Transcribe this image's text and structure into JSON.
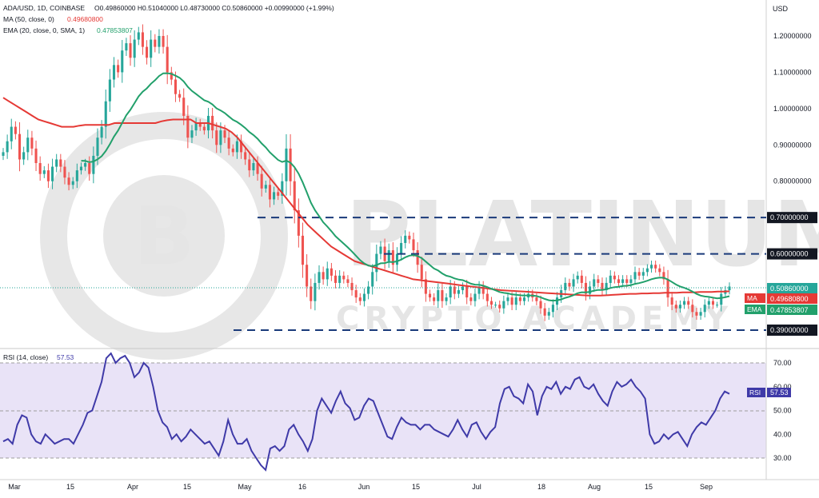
{
  "colors": {
    "up": "#26a69a",
    "down": "#ef5350",
    "ma": "#e53935",
    "ema": "#22a06b",
    "rsi": "#3f3aa8",
    "level": "#1a3a7a",
    "label_bg": "#131722",
    "rsi_band": "#e9e3f7"
  },
  "legend": {
    "symbol": "ADA/USD, 1D, COINBASE",
    "ohlc": "O0.49860000 H0.51040000 L0.48730000 C0.50860000 +0.00990000 (+1.99%)",
    "ma": "MA (50, close, 0)",
    "ma_value": "0.49680800",
    "ema": "EMA (20, close, 0, SMA, 1)",
    "ema_value": "0.47853807",
    "rsi": "RSI (14, close)",
    "rsi_value": "57.53"
  },
  "watermark": {
    "line1": "PLATINUM",
    "line2": "CRYPTO ACADEMY",
    "logo_letter": "B"
  },
  "chart_data": [
    {
      "type": "candlestick",
      "title": "ADA/USD, 1D, COINBASE",
      "ylabel": "USD",
      "ylim": [
        0.35,
        1.27
      ],
      "x_ticks": [
        "Mar",
        "15",
        "Apr",
        "15",
        "May",
        "16",
        "Jun",
        "15",
        "Jul",
        "18",
        "Aug",
        "15",
        "Sep"
      ],
      "y_ticks": [
        "1.20000000",
        "1.10000000",
        "1.00000000",
        "0.90000000",
        "0.80000000"
      ],
      "levels": [
        {
          "label": "0.70000000",
          "value": 0.7
        },
        {
          "label": "0.60000000",
          "value": 0.6
        },
        {
          "label": "0.39000000",
          "value": 0.39
        }
      ],
      "price_labels": [
        {
          "label": "0.50860000",
          "tag": "",
          "value": 0.5086
        },
        {
          "label": "0.49680800",
          "tag": "MA",
          "value": 0.4968
        },
        {
          "label": "0.47853807",
          "tag": "EMA",
          "value": 0.4785
        }
      ],
      "close": [
        0.88,
        0.91,
        0.95,
        0.93,
        0.86,
        0.88,
        0.92,
        0.89,
        0.85,
        0.82,
        0.83,
        0.8,
        0.84,
        0.86,
        0.84,
        0.81,
        0.79,
        0.8,
        0.83,
        0.84,
        0.85,
        0.82,
        0.87,
        0.92,
        0.95,
        1.02,
        1.08,
        1.12,
        1.1,
        1.16,
        1.18,
        1.14,
        1.19,
        1.21,
        1.17,
        1.14,
        1.19,
        1.17,
        1.2,
        1.17,
        1.1,
        1.08,
        1.04,
        1.03,
        0.98,
        0.92,
        0.94,
        0.96,
        0.95,
        0.94,
        0.98,
        0.94,
        0.9,
        0.94,
        0.92,
        0.89,
        0.88,
        0.91,
        0.88,
        0.86,
        0.83,
        0.85,
        0.82,
        0.78,
        0.79,
        0.75,
        0.77,
        0.76,
        0.8,
        0.89,
        0.8,
        0.72,
        0.65,
        0.57,
        0.51,
        0.47,
        0.52,
        0.55,
        0.53,
        0.56,
        0.54,
        0.52,
        0.54,
        0.53,
        0.52,
        0.5,
        0.48,
        0.47,
        0.49,
        0.51,
        0.55,
        0.6,
        0.62,
        0.58,
        0.61,
        0.57,
        0.6,
        0.63,
        0.65,
        0.64,
        0.61,
        0.57,
        0.53,
        0.49,
        0.48,
        0.47,
        0.5,
        0.47,
        0.48,
        0.51,
        0.49,
        0.5,
        0.51,
        0.48,
        0.47,
        0.49,
        0.51,
        0.49,
        0.47,
        0.46,
        0.46,
        0.45,
        0.47,
        0.48,
        0.46,
        0.48,
        0.47,
        0.48,
        0.49,
        0.48,
        0.47,
        0.45,
        0.43,
        0.44,
        0.46,
        0.48,
        0.5,
        0.52,
        0.51,
        0.53,
        0.54,
        0.52,
        0.49,
        0.51,
        0.53,
        0.52,
        0.5,
        0.52,
        0.54,
        0.53,
        0.52,
        0.53,
        0.52,
        0.53,
        0.55,
        0.54,
        0.55,
        0.56,
        0.57,
        0.56,
        0.55,
        0.53,
        0.48,
        0.46,
        0.45,
        0.46,
        0.47,
        0.46,
        0.44,
        0.43,
        0.44,
        0.46,
        0.47,
        0.46,
        0.46,
        0.49,
        0.5,
        0.51
      ],
      "ma_50": [
        1.03,
        1.02,
        1.01,
        1.0,
        0.99,
        0.98,
        0.97,
        0.965,
        0.96,
        0.955,
        0.95,
        0.95,
        0.95,
        0.953,
        0.955,
        0.955,
        0.955,
        0.955,
        0.955,
        0.96,
        0.96,
        0.96,
        0.96,
        0.96,
        0.96,
        0.96,
        0.96,
        0.965,
        0.968,
        0.97,
        0.97,
        0.97,
        0.97,
        0.96,
        0.96,
        0.96,
        0.955,
        0.95,
        0.945,
        0.935,
        0.92,
        0.9,
        0.88,
        0.86,
        0.84,
        0.82,
        0.8,
        0.78,
        0.76,
        0.74,
        0.72,
        0.7,
        0.68,
        0.665,
        0.65,
        0.635,
        0.62,
        0.61,
        0.6,
        0.59,
        0.58,
        0.575,
        0.57,
        0.565,
        0.56,
        0.555,
        0.55,
        0.545,
        0.54,
        0.535,
        0.53,
        0.528,
        0.526,
        0.524,
        0.522,
        0.52,
        0.518,
        0.516,
        0.514,
        0.512,
        0.51,
        0.508,
        0.506,
        0.504,
        0.502,
        0.5,
        0.499,
        0.498,
        0.497,
        0.496,
        0.495,
        0.494,
        0.493,
        0.492,
        0.491,
        0.49,
        0.489,
        0.488,
        0.487,
        0.486,
        0.485,
        0.485,
        0.485,
        0.486,
        0.487,
        0.488,
        0.489,
        0.49,
        0.49,
        0.491,
        0.491,
        0.492,
        0.492,
        0.493,
        0.493,
        0.493,
        0.494,
        0.494,
        0.494,
        0.495,
        0.495,
        0.495,
        0.496,
        0.496,
        0.497
      ]
    },
    {
      "type": "line",
      "title": "RSI (14, close)",
      "ylim": [
        20,
        75
      ],
      "y_ticks": [
        "70.00",
        "60.00",
        "50.00",
        "40.00",
        "30.00"
      ],
      "band": [
        30,
        70
      ],
      "value_label": "57.53",
      "values": [
        37,
        38,
        36,
        44,
        48,
        47,
        40,
        37,
        36,
        40,
        38,
        36,
        37,
        38,
        38,
        36,
        40,
        44,
        49,
        50,
        56,
        62,
        72,
        74,
        70,
        72,
        73,
        70,
        64,
        66,
        70,
        68,
        60,
        50,
        45,
        43,
        38,
        40,
        37,
        39,
        42,
        40,
        38,
        36,
        37,
        34,
        31,
        37,
        46,
        40,
        36,
        36,
        38,
        33,
        30,
        27,
        25,
        34,
        35,
        33,
        35,
        42,
        44,
        40,
        37,
        33,
        38,
        50,
        55,
        52,
        49,
        54,
        58,
        53,
        51,
        46,
        47,
        52,
        55,
        54,
        49,
        44,
        39,
        38,
        43,
        47,
        45,
        44,
        44,
        42,
        44,
        44,
        42,
        41,
        40,
        39,
        42,
        46,
        42,
        39,
        44,
        45,
        41,
        38,
        41,
        43,
        53,
        59,
        60,
        56,
        55,
        53,
        61,
        58,
        48,
        56,
        60,
        59,
        62,
        57,
        60,
        59,
        63,
        64,
        60,
        59,
        61,
        57,
        54,
        52,
        58,
        62,
        60,
        61,
        63,
        60,
        58,
        55,
        40,
        36,
        37,
        40,
        38,
        40,
        41,
        38,
        35,
        40,
        43,
        45,
        44,
        47,
        50,
        55,
        58,
        57
      ]
    }
  ]
}
